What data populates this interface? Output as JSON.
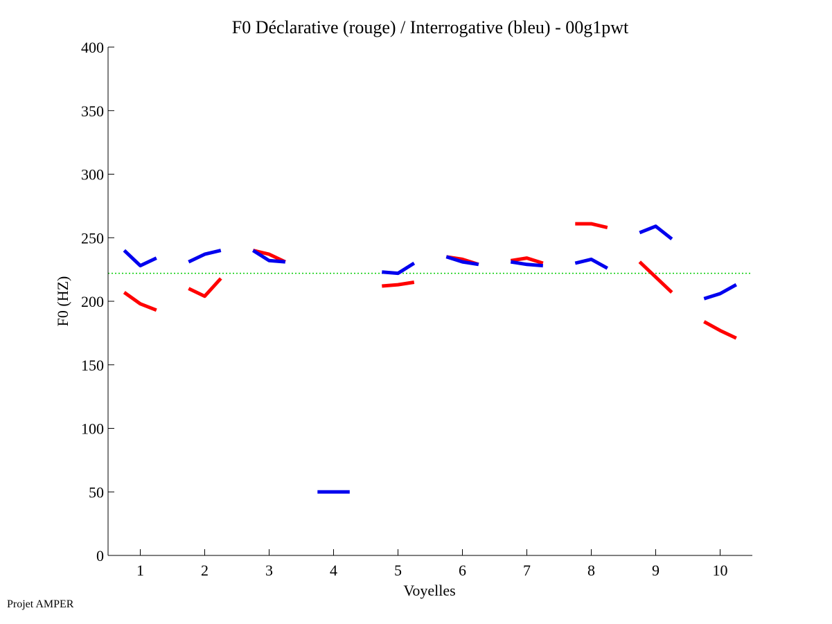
{
  "chart_data": {
    "type": "line",
    "title": "F0 Déclarative (rouge) / Interrogative (bleu) - 00g1pwt",
    "xlabel": "Voyelles",
    "ylabel": "F0 (HZ)",
    "xlim": [
      0.5,
      10.5
    ],
    "ylim": [
      0,
      400
    ],
    "xticks": [
      "1",
      "2",
      "3",
      "4",
      "5",
      "6",
      "7",
      "8",
      "9",
      "10"
    ],
    "yticks": [
      "0",
      "50",
      "100",
      "150",
      "200",
      "250",
      "300",
      "350",
      "400"
    ],
    "reference_line": {
      "value": 222,
      "color": "#00cc00",
      "style": "dotted"
    },
    "series": [
      {
        "name": "Déclarative",
        "color": "#ff0000",
        "segments": [
          {
            "vowel": 1,
            "values": [
              207,
              198,
              193
            ]
          },
          {
            "vowel": 2,
            "values": [
              210,
              204,
              218
            ]
          },
          {
            "vowel": 3,
            "values": [
              240,
              237,
              231
            ]
          },
          {
            "vowel": 5,
            "values": [
              212,
              213,
              215
            ]
          },
          {
            "vowel": 6,
            "values": [
              235,
              233,
              229
            ]
          },
          {
            "vowel": 7,
            "values": [
              232,
              234,
              230
            ]
          },
          {
            "vowel": 8,
            "values": [
              261,
              261,
              258
            ]
          },
          {
            "vowel": 9,
            "values": [
              231,
              219,
              207
            ]
          },
          {
            "vowel": 10,
            "values": [
              184,
              177,
              171
            ]
          }
        ]
      },
      {
        "name": "Interrogative",
        "color": "#0000ee",
        "segments": [
          {
            "vowel": 1,
            "values": [
              240,
              228,
              234
            ]
          },
          {
            "vowel": 2,
            "values": [
              231,
              237,
              240
            ]
          },
          {
            "vowel": 3,
            "values": [
              240,
              232,
              231
            ]
          },
          {
            "vowel": 4,
            "values": [
              50,
              50,
              50
            ]
          },
          {
            "vowel": 5,
            "values": [
              223,
              222,
              230
            ]
          },
          {
            "vowel": 6,
            "values": [
              235,
              231,
              229
            ]
          },
          {
            "vowel": 7,
            "values": [
              231,
              229,
              228
            ]
          },
          {
            "vowel": 8,
            "values": [
              230,
              233,
              226
            ]
          },
          {
            "vowel": 9,
            "values": [
              254,
              259,
              249
            ]
          },
          {
            "vowel": 10,
            "values": [
              202,
              206,
              213
            ]
          }
        ]
      }
    ]
  },
  "footer": {
    "text": "Projet AMPER"
  }
}
